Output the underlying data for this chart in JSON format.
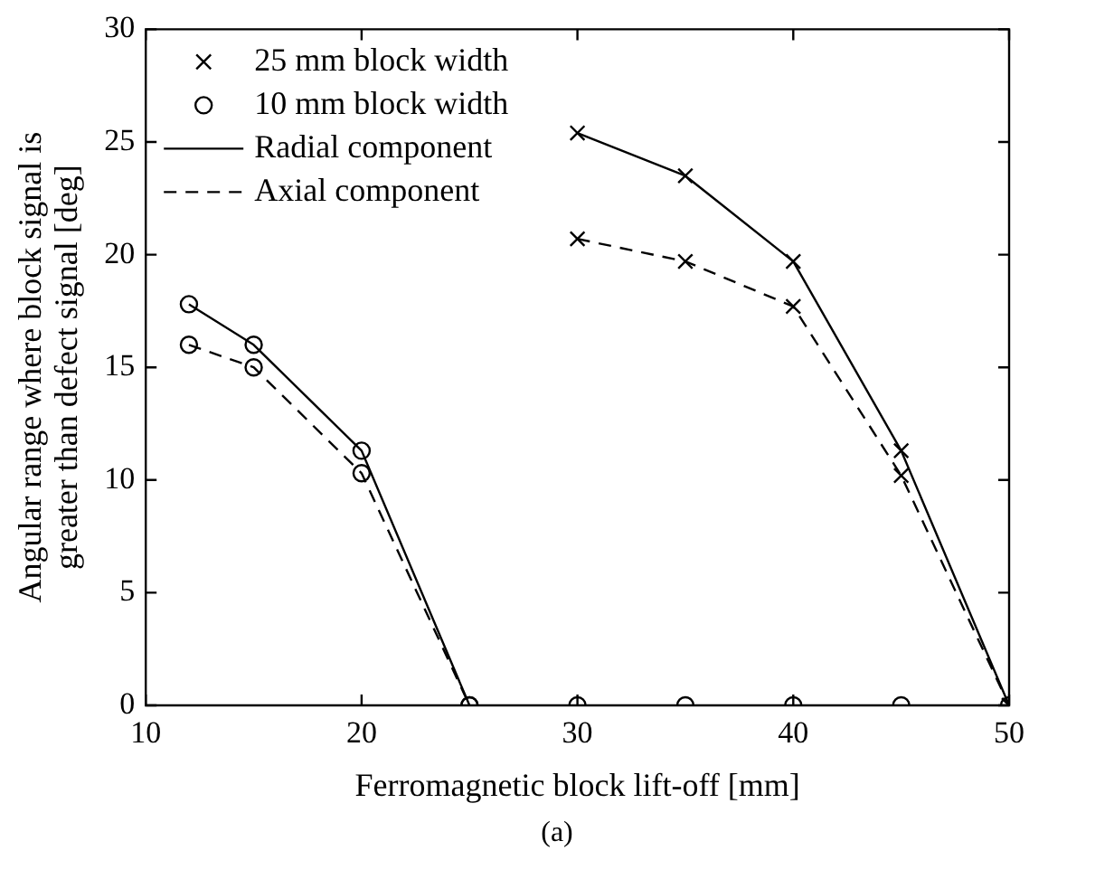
{
  "chart_data": {
    "type": "line",
    "xlabel": "Ferromagnetic block lift-off [mm]",
    "ylabel": "Angular range where block signal is greater than defect signal [deg]",
    "xlim": [
      10,
      50
    ],
    "xticks": [
      10,
      20,
      30,
      40,
      50
    ],
    "ylim": [
      0,
      30
    ],
    "yticks": [
      0,
      5,
      10,
      15,
      20,
      25,
      30
    ],
    "grid": false,
    "legend": "top left",
    "annotations": [
      "(a)"
    ],
    "series": [
      {
        "name": "25 mm block width",
        "type": "scatter",
        "marker": "cross",
        "color": "#000000",
        "x": [
          30,
          35,
          40,
          45,
          50,
          30,
          35,
          40,
          45,
          50
        ],
        "values": [
          25.4,
          23.5,
          19.7,
          11.3,
          0,
          20.7,
          19.7,
          17.7,
          10.2,
          0
        ]
      },
      {
        "name": "10 mm block width",
        "type": "scatter",
        "marker": "circle",
        "color": "#000000",
        "x": [
          12,
          15,
          20,
          25,
          12,
          15,
          20,
          25,
          30,
          35,
          40,
          45,
          50
        ],
        "values": [
          17.8,
          16.0,
          11.3,
          0,
          16.0,
          15.0,
          10.3,
          0,
          0,
          0,
          0,
          0,
          0
        ]
      },
      {
        "name": "Radial component",
        "marker": "none",
        "line_style": "solid",
        "color": "#000000",
        "x": [
          30,
          35,
          40,
          45,
          50
        ],
        "values": [
          25.4,
          23.5,
          19.7,
          11.3,
          0
        ]
      },
      {
        "name": "Axial component",
        "marker": "none",
        "line_style": "dashed",
        "color": "#000000",
        "x": [
          30,
          35,
          40,
          45,
          50
        ],
        "values": [
          20.7,
          19.7,
          17.7,
          10.2,
          0
        ]
      },
      {
        "marker": "none",
        "line_style": "solid",
        "color": "#000000",
        "x": [
          12,
          15,
          20,
          25
        ],
        "values": [
          17.8,
          16.0,
          11.3,
          0
        ]
      },
      {
        "marker": "none",
        "line_style": "dashed",
        "color": "#000000",
        "x": [
          12,
          15,
          20,
          25
        ],
        "values": [
          16.0,
          15.0,
          10.3,
          0
        ]
      }
    ]
  }
}
